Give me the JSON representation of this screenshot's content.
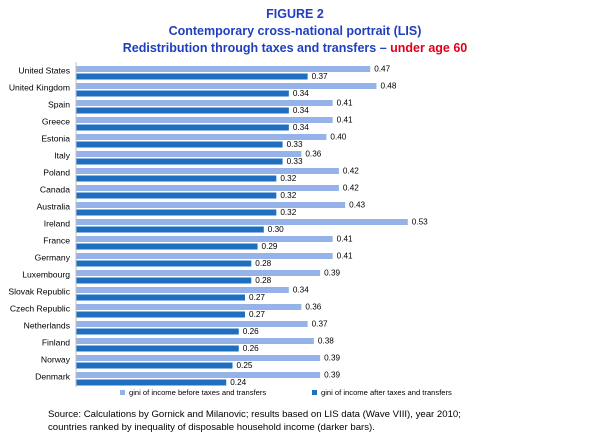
{
  "figure": {
    "label": "FIGURE 2",
    "line1": "Contemporary cross-national portrait (LIS)",
    "line2_main": "Redistribution through taxes and transfers – ",
    "line2_highlight": "under age 60"
  },
  "colors": {
    "title": "#1f3fbf",
    "highlight": "#e0001b",
    "before": "#95b3e8",
    "after": "#1f6fc0"
  },
  "chart_data": {
    "type": "bar",
    "orientation": "horizontal",
    "categories": [
      "United States",
      "United Kingdom",
      "Spain",
      "Greece",
      "Estonia",
      "Italy",
      "Poland",
      "Canada",
      "Australia",
      "Ireland",
      "France",
      "Germany",
      "Luxembourg",
      "Slovak Republic",
      "Czech Republic",
      "Netherlands",
      "Finland",
      "Norway",
      "Denmark"
    ],
    "series": [
      {
        "name": "gini of income before taxes and transfers",
        "values": [
          0.47,
          0.48,
          0.41,
          0.41,
          0.4,
          0.36,
          0.42,
          0.42,
          0.43,
          0.53,
          0.41,
          0.41,
          0.39,
          0.34,
          0.36,
          0.37,
          0.38,
          0.39,
          0.39
        ],
        "labels": [
          "0.47",
          "0.48",
          "0.41",
          "0.41",
          "0.40",
          "0.36",
          "0.42",
          "0.42",
          "0.43",
          "0.53",
          "0.41",
          "0.41",
          "0.39",
          "0.34",
          "0.36",
          "0.37",
          "0.38",
          "0.39",
          "0.39"
        ]
      },
      {
        "name": "gini of income after taxes and transfers",
        "values": [
          0.37,
          0.34,
          0.34,
          0.34,
          0.33,
          0.33,
          0.32,
          0.32,
          0.32,
          0.3,
          0.29,
          0.28,
          0.28,
          0.27,
          0.27,
          0.26,
          0.26,
          0.25,
          0.24
        ],
        "labels": [
          "0.37",
          "0.34",
          "0.34",
          "0.34",
          "0.33",
          "0.33",
          "0.32",
          "0.32",
          "0.32",
          "0.30",
          "0.29",
          "0.28",
          "0.28",
          "0.27",
          "0.27",
          "0.26",
          "0.26",
          "0.25",
          "0.24"
        ]
      }
    ],
    "xlim": [
      0,
      0.6
    ],
    "grid": false,
    "legend_position": "bottom"
  },
  "source": {
    "line1": "Source:  Calculations by Gornick and Milanovic; results based on LIS data (Wave VIII), year 2010;",
    "line2": "countries ranked by inequality of disposable household income (darker bars)."
  }
}
